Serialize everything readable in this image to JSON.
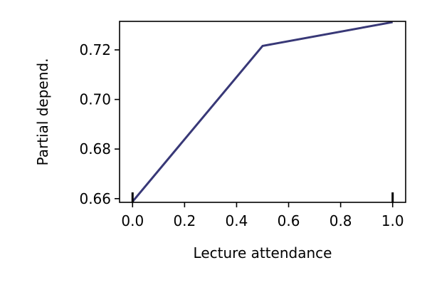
{
  "chart_data": {
    "type": "line",
    "xlabel": "Lecture attendance",
    "ylabel": "Partial depend.",
    "xlim": [
      -0.05,
      1.05
    ],
    "ylim": [
      0.6585,
      0.7315
    ],
    "xticks": [
      0.0,
      0.2,
      0.4,
      0.6,
      0.8,
      1.0
    ],
    "xtick_labels": [
      "0.0",
      "0.2",
      "0.4",
      "0.6",
      "0.8",
      "1.0"
    ],
    "yticks": [
      0.66,
      0.68,
      0.7,
      0.72
    ],
    "ytick_labels": [
      "0.66",
      "0.68",
      "0.70",
      "0.72"
    ],
    "series": [
      {
        "x": [
          0.0,
          0.5,
          1.0
        ],
        "y": [
          0.6588,
          0.7216,
          0.7312
        ]
      }
    ],
    "rug_x": [
      0.0,
      1.0
    ],
    "line_color": "#383877",
    "grid": false,
    "legend": false
  }
}
